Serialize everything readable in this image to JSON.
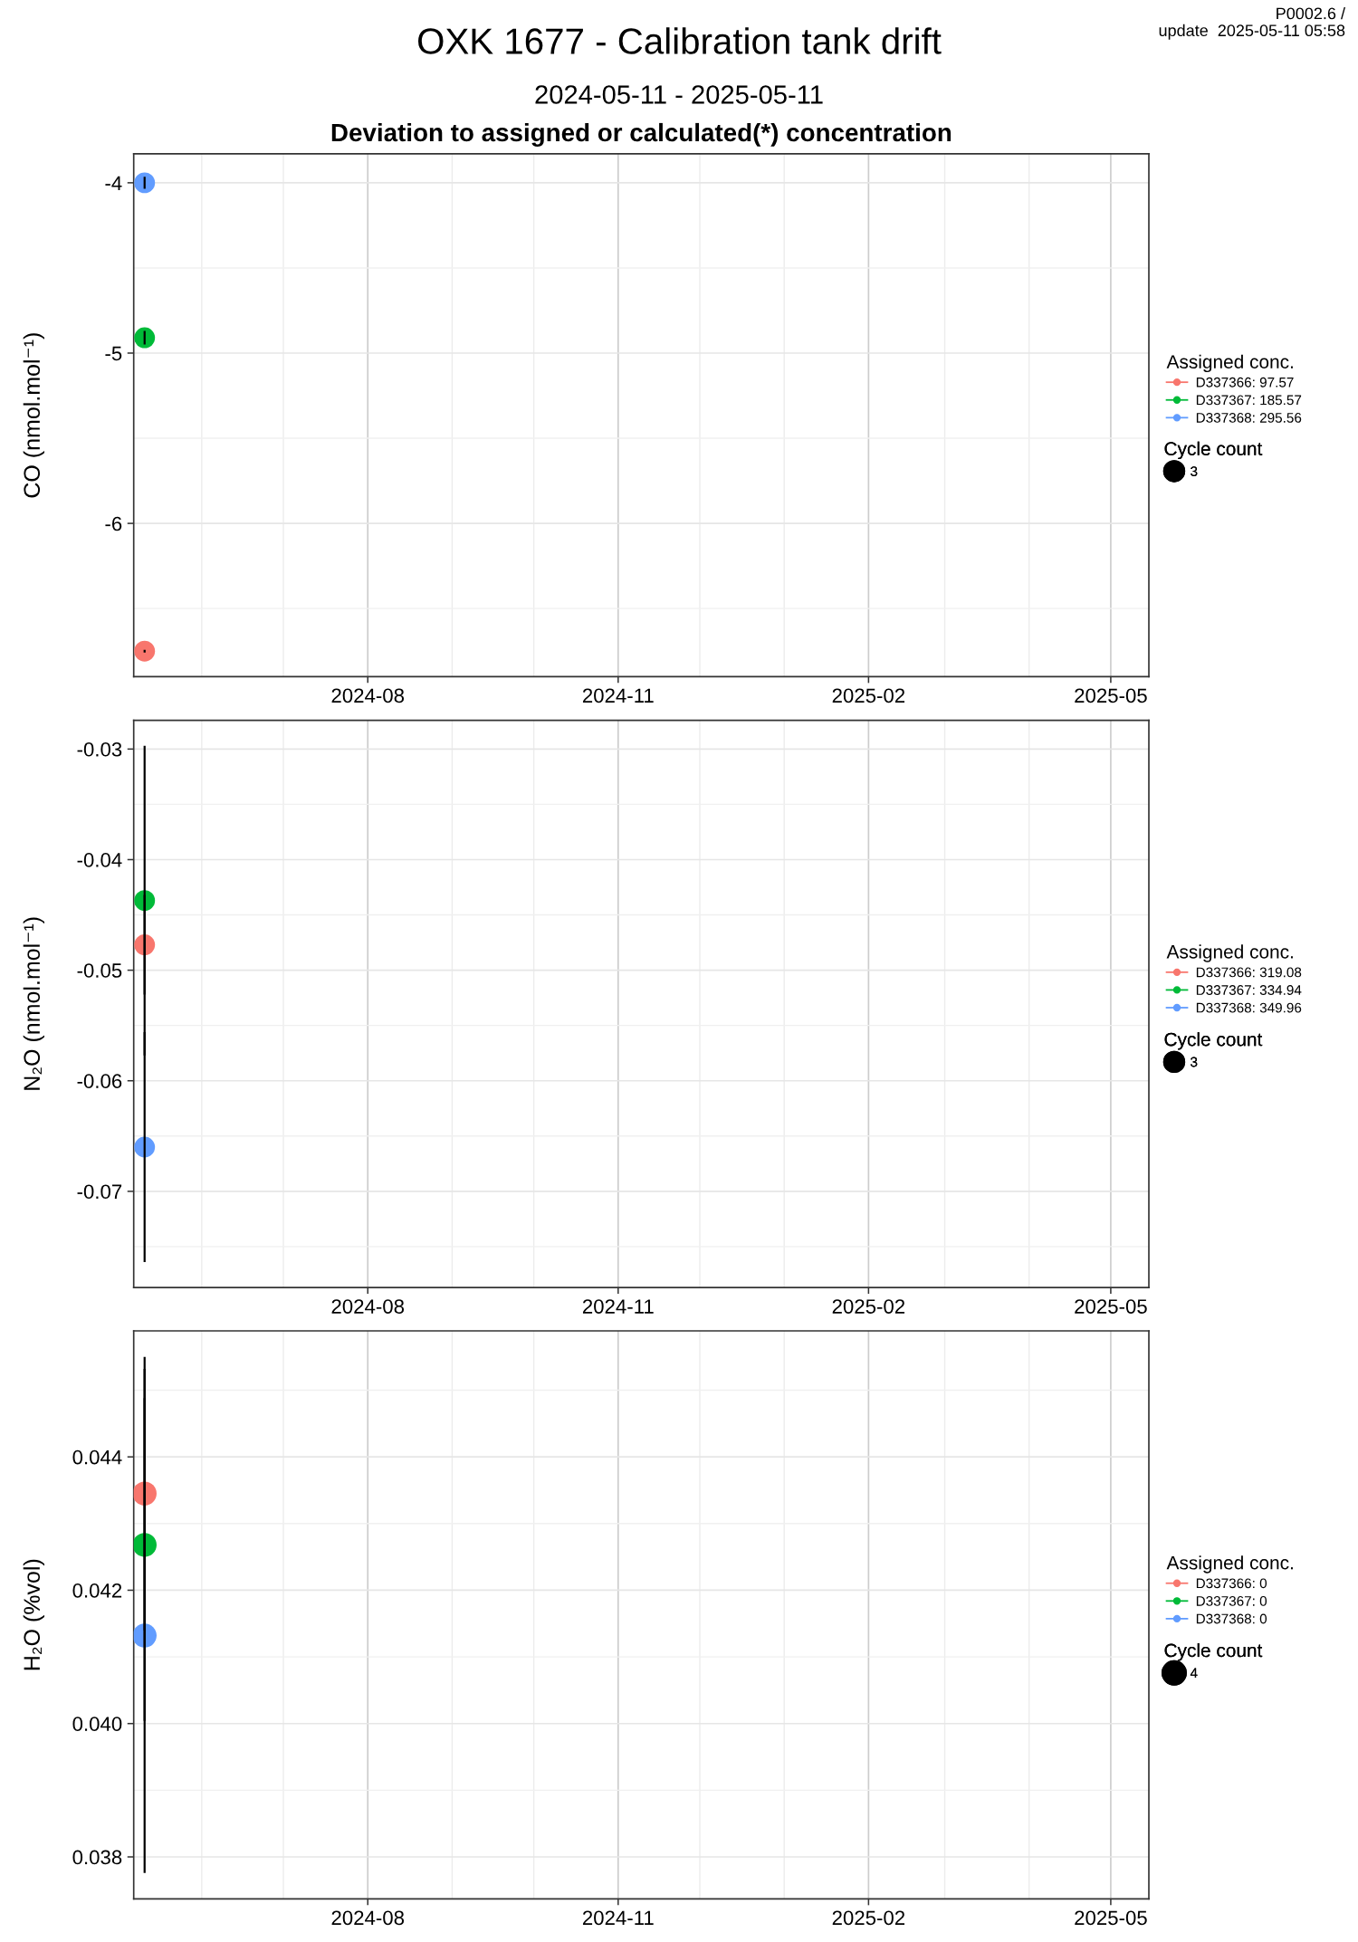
{
  "chart_data": [
    {
      "type": "bubble",
      "title": "OXK 1677 - Calibration tank drift",
      "subtitle": "2024-05-11 - 2025-05-11",
      "ylabel": "CO (nmol.mol⁻¹)",
      "x": [
        "2024-05-11"
      ],
      "xlim": [
        "2024-05-07",
        "2025-05-15"
      ],
      "xticks": [
        "2024-08",
        "2024-11",
        "2025-02",
        "2025-05"
      ],
      "ylim": [
        -6.9,
        -3.83
      ],
      "yticks": [
        -6,
        -5,
        -4
      ],
      "grid": true,
      "legend": "right",
      "legend_title": "Assigned conc.",
      "marker": "circle",
      "size_legend": [
        3
      ],
      "annotations": [
        "Deviation to assigned or calculated(*) concentration",
        "P0002.6 /\nupdate  2025-05-11 05:58",
        "Cycle count"
      ],
      "series": [
        {
          "name": "D337366: 97.57",
          "color": "#f8766d",
          "values": [
            -6.75
          ],
          "errors": [
            0.008
          ],
          "sizes": [
            3
          ]
        },
        {
          "name": "D337367: 185.57",
          "color": "#00ba38",
          "values": [
            -4.91
          ],
          "errors": [
            0.04
          ],
          "sizes": [
            3
          ]
        },
        {
          "name": "D337368: 295.56",
          "color": "#619cff",
          "values": [
            -4.0
          ],
          "errors": [
            0.035
          ],
          "sizes": [
            3
          ]
        }
      ]
    },
    {
      "type": "bubble",
      "ylabel": "N₂O (nmol.mol⁻¹)",
      "x": [
        "2024-05-11"
      ],
      "xlim": [
        "2024-05-07",
        "2025-05-15"
      ],
      "xticks": [
        "2024-08",
        "2024-11",
        "2025-02",
        "2025-05"
      ],
      "ylim": [
        -0.0787,
        -0.0274
      ],
      "yticks": [
        -0.07,
        -0.06,
        -0.05,
        -0.04,
        -0.03
      ],
      "grid": true,
      "legend": "right",
      "legend_title": "Assigned conc.",
      "marker": "circle",
      "size_legend": [
        3
      ],
      "annotations": [
        "Cycle count"
      ],
      "series": [
        {
          "name": "D337366: 319.08",
          "color": "#f8766d",
          "values": [
            -0.0477
          ],
          "errors": [
            0.0045
          ],
          "sizes": [
            3
          ]
        },
        {
          "name": "D337367: 334.94",
          "color": "#00ba38",
          "values": [
            -0.0437
          ],
          "errors": [
            0.014
          ],
          "sizes": [
            3
          ]
        },
        {
          "name": "D337368: 349.96",
          "color": "#619cff",
          "values": [
            -0.066
          ],
          "errors": [
            0.0104
          ],
          "sizes": [
            3
          ]
        }
      ]
    },
    {
      "type": "bubble",
      "ylabel": "H₂O (%vol)",
      "x": [
        "2024-05-11"
      ],
      "xlim": [
        "2024-05-07",
        "2025-05-15"
      ],
      "xticks": [
        "2024-08",
        "2024-11",
        "2025-02",
        "2025-05"
      ],
      "ylim": [
        0.03737,
        0.04589
      ],
      "yticks": [
        0.038,
        {
          "value": 0.04,
          "label": "0.040"
        },
        0.042,
        0.044
      ],
      "grid": true,
      "legend": "right",
      "legend_title": "Assigned conc.",
      "marker": "circle",
      "size_legend": [
        4
      ],
      "annotations": [
        "Cycle count"
      ],
      "series": [
        {
          "name": "D337366: 0",
          "color": "#f8766d",
          "values": [
            0.04345
          ],
          "errors": [
            0.00205
          ],
          "sizes": [
            4
          ]
        },
        {
          "name": "D337367: 0",
          "color": "#00ba38",
          "values": [
            0.04268
          ],
          "errors": [
            0.00264
          ],
          "sizes": [
            4
          ]
        },
        {
          "name": "D337368: 0",
          "color": "#619cff",
          "values": [
            0.04132
          ],
          "errors": [
            0.00356
          ],
          "sizes": [
            4
          ]
        }
      ]
    }
  ]
}
